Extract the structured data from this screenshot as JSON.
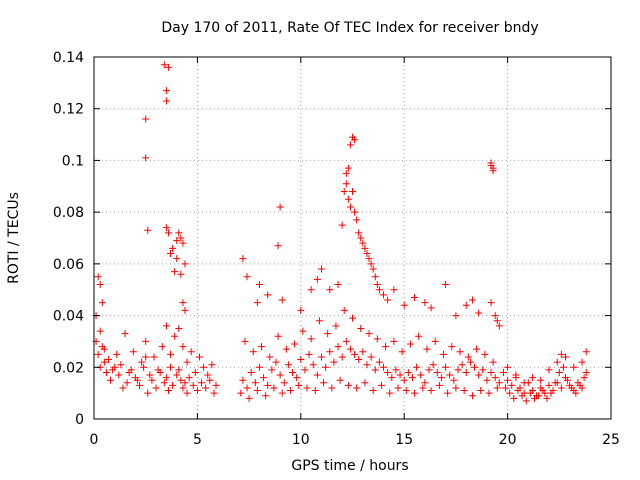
{
  "chart_data": {
    "type": "scatter",
    "title": "Day 170 of 2011, Rate Of TEC Index for receiver bndy",
    "xlabel": "GPS time / hours",
    "ylabel": "ROTI / TECUs",
    "xlim": [
      0,
      25
    ],
    "ylim": [
      0,
      0.14
    ],
    "x_ticks": [
      0,
      5,
      10,
      15,
      20,
      25
    ],
    "y_ticks": [
      0,
      0.02,
      0.04,
      0.06,
      0.08,
      0.1,
      0.12,
      0.14
    ],
    "x_tick_labels": [
      "0",
      "5",
      "10",
      "15",
      "20",
      "25"
    ],
    "y_tick_labels": [
      "0",
      "0.02",
      "0.04",
      "0.06",
      "0.08",
      "0.1",
      "0.12",
      "0.14"
    ],
    "grid": true,
    "legend": "none",
    "marker": "+",
    "color": "#ff0000",
    "series": [
      {
        "x": [
          0.1,
          0.2,
          0.3,
          0.4,
          0.5,
          0.6,
          0.8,
          1.0,
          1.2,
          1.4,
          1.6,
          1.8,
          2.0,
          2.2,
          2.4,
          2.5,
          2.6,
          2.8,
          3.0,
          3.2,
          3.4,
          3.5,
          3.6,
          3.7,
          3.8,
          4.0,
          4.1,
          4.2,
          4.3,
          4.4,
          4.5,
          4.6,
          4.8,
          5.0,
          5.2,
          5.4,
          5.6,
          5.8,
          5.9,
          0.1,
          0.3,
          0.5,
          0.7,
          0.9,
          1.1,
          1.3,
          1.5,
          1.7,
          1.9,
          2.1,
          2.3,
          2.5,
          2.7,
          2.9,
          3.1,
          3.3,
          3.5,
          3.7,
          3.9,
          4.1,
          4.3,
          4.5,
          4.7,
          4.9,
          5.1,
          5.3,
          5.5,
          5.7,
          0.2,
          0.3,
          0.4,
          2.5,
          2.5,
          2.6,
          3.4,
          3.5,
          3.5,
          3.6,
          3.5,
          3.6,
          3.7,
          3.8,
          4.0,
          4.1,
          4.2,
          4.3,
          4.4,
          4.2,
          3.9,
          4.0,
          4.3,
          4.4,
          7.2,
          7.4,
          7.6,
          7.8,
          8.0,
          8.2,
          8.4,
          8.6,
          8.8,
          9.0,
          9.2,
          9.4,
          9.6,
          9.8,
          10.0,
          10.2,
          10.4,
          10.6,
          10.8,
          11.0,
          11.2,
          11.4,
          11.6,
          11.8,
          12.0,
          12.2,
          12.4,
          12.6,
          12.8,
          13.0,
          13.2,
          13.4,
          13.6,
          13.8,
          14.0,
          14.2,
          14.4,
          14.6,
          14.8,
          15.0,
          15.2,
          15.4,
          15.6,
          15.8,
          16.0,
          16.2,
          16.4,
          16.6,
          16.8,
          17.0,
          17.2,
          17.4,
          17.6,
          17.8,
          18.0,
          18.2,
          18.4,
          18.6,
          18.8,
          19.0,
          19.2,
          19.4,
          19.6,
          7.3,
          7.7,
          8.1,
          8.5,
          8.9,
          9.3,
          9.7,
          10.1,
          10.5,
          10.9,
          11.3,
          11.7,
          12.1,
          12.5,
          12.9,
          13.3,
          13.7,
          14.1,
          14.5,
          14.9,
          15.3,
          15.7,
          16.1,
          16.5,
          16.9,
          17.3,
          17.7,
          18.1,
          18.5,
          18.9,
          19.3,
          7.1,
          7.5,
          7.9,
          8.3,
          8.7,
          9.1,
          9.5,
          9.9,
          10.3,
          10.7,
          11.1,
          11.5,
          11.9,
          12.3,
          12.7,
          13.1,
          13.5,
          13.9,
          14.3,
          14.7,
          15.1,
          15.5,
          15.9,
          16.3,
          16.7,
          17.1,
          17.5,
          17.9,
          18.3,
          18.7,
          19.1,
          19.5,
          7.2,
          7.4,
          7.9,
          8.0,
          8.4,
          8.9,
          9.0,
          9.1,
          10.0,
          10.5,
          10.8,
          11.0,
          11.4,
          11.8,
          12.0,
          12.1,
          12.2,
          12.3,
          12.4,
          12.5,
          12.6,
          12.2,
          12.3,
          12.4,
          12.5,
          12.6,
          12.7,
          12.8,
          12.9,
          13.0,
          13.1,
          13.2,
          13.3,
          13.4,
          13.5,
          13.6,
          13.7,
          13.8,
          14.0,
          14.2,
          14.5,
          15.0,
          15.5,
          16.0,
          16.3,
          17.0,
          17.5,
          18.0,
          18.3,
          18.6,
          19.2,
          19.3,
          19.2,
          19.3,
          19.2,
          19.4,
          19.5,
          19.6,
          19.8,
          20.0,
          20.2,
          20.4,
          20.6,
          20.8,
          21.0,
          21.2,
          21.4,
          21.6,
          21.8,
          22.0,
          22.2,
          22.4,
          22.6,
          22.8,
          23.0,
          23.2,
          23.4,
          23.6,
          23.8,
          19.9,
          20.1,
          20.3,
          20.5,
          20.7,
          20.9,
          21.1,
          21.3,
          21.5,
          21.7,
          21.9,
          22.1,
          22.3,
          22.5,
          22.7,
          22.9,
          23.1,
          23.3,
          23.5,
          23.7,
          20.0,
          20.4,
          20.8,
          21.2,
          21.6,
          22.0,
          22.4,
          22.6,
          22.8,
          23.2,
          23.6,
          23.8
        ],
        "y": [
          0.03,
          0.025,
          0.02,
          0.028,
          0.022,
          0.018,
          0.015,
          0.02,
          0.017,
          0.012,
          0.014,
          0.019,
          0.016,
          0.013,
          0.02,
          0.024,
          0.01,
          0.015,
          0.012,
          0.018,
          0.014,
          0.016,
          0.011,
          0.02,
          0.013,
          0.017,
          0.019,
          0.015,
          0.012,
          0.014,
          0.01,
          0.016,
          0.013,
          0.011,
          0.014,
          0.012,
          0.015,
          0.01,
          0.013,
          0.04,
          0.034,
          0.027,
          0.023,
          0.019,
          0.025,
          0.021,
          0.033,
          0.018,
          0.026,
          0.015,
          0.022,
          0.03,
          0.017,
          0.024,
          0.019,
          0.028,
          0.036,
          0.025,
          0.032,
          0.035,
          0.028,
          0.022,
          0.026,
          0.018,
          0.024,
          0.02,
          0.017,
          0.021,
          0.055,
          0.052,
          0.045,
          0.116,
          0.101,
          0.073,
          0.137,
          0.127,
          0.123,
          0.136,
          0.074,
          0.072,
          0.064,
          0.066,
          0.069,
          0.072,
          0.07,
          0.068,
          0.06,
          0.056,
          0.057,
          0.062,
          0.045,
          0.042,
          0.015,
          0.012,
          0.018,
          0.014,
          0.02,
          0.016,
          0.013,
          0.019,
          0.022,
          0.017,
          0.014,
          0.021,
          0.018,
          0.016,
          0.023,
          0.019,
          0.025,
          0.021,
          0.017,
          0.024,
          0.02,
          0.026,
          0.022,
          0.028,
          0.024,
          0.03,
          0.027,
          0.025,
          0.023,
          0.026,
          0.021,
          0.024,
          0.019,
          0.022,
          0.02,
          0.018,
          0.016,
          0.019,
          0.017,
          0.015,
          0.018,
          0.016,
          0.02,
          0.017,
          0.014,
          0.019,
          0.021,
          0.018,
          0.016,
          0.02,
          0.017,
          0.015,
          0.019,
          0.021,
          0.018,
          0.022,
          0.02,
          0.017,
          0.019,
          0.015,
          0.018,
          0.016,
          0.014,
          0.03,
          0.026,
          0.028,
          0.024,
          0.032,
          0.027,
          0.029,
          0.034,
          0.031,
          0.038,
          0.033,
          0.036,
          0.042,
          0.039,
          0.035,
          0.033,
          0.031,
          0.028,
          0.03,
          0.026,
          0.029,
          0.032,
          0.027,
          0.03,
          0.025,
          0.028,
          0.026,
          0.024,
          0.027,
          0.025,
          0.022,
          0.01,
          0.008,
          0.011,
          0.009,
          0.012,
          0.01,
          0.011,
          0.013,
          0.012,
          0.011,
          0.014,
          0.012,
          0.015,
          0.013,
          0.012,
          0.014,
          0.011,
          0.013,
          0.01,
          0.012,
          0.011,
          0.01,
          0.012,
          0.011,
          0.013,
          0.01,
          0.012,
          0.011,
          0.009,
          0.011,
          0.01,
          0.012,
          0.062,
          0.055,
          0.045,
          0.052,
          0.048,
          0.067,
          0.082,
          0.046,
          0.042,
          0.05,
          0.054,
          0.058,
          0.05,
          0.052,
          0.075,
          0.088,
          0.091,
          0.097,
          0.106,
          0.109,
          0.108,
          0.095,
          0.085,
          0.082,
          0.088,
          0.08,
          0.077,
          0.072,
          0.07,
          0.068,
          0.066,
          0.064,
          0.062,
          0.06,
          0.058,
          0.055,
          0.052,
          0.05,
          0.048,
          0.046,
          0.05,
          0.044,
          0.047,
          0.045,
          0.043,
          0.052,
          0.04,
          0.044,
          0.046,
          0.041,
          0.099,
          0.097,
          0.098,
          0.096,
          0.045,
          0.04,
          0.038,
          0.036,
          0.018,
          0.015,
          0.013,
          0.016,
          0.012,
          0.01,
          0.014,
          0.011,
          0.009,
          0.012,
          0.01,
          0.013,
          0.011,
          0.014,
          0.012,
          0.016,
          0.013,
          0.011,
          0.014,
          0.012,
          0.018,
          0.012,
          0.01,
          0.008,
          0.011,
          0.009,
          0.007,
          0.01,
          0.008,
          0.009,
          0.011,
          0.008,
          0.01,
          0.014,
          0.018,
          0.02,
          0.015,
          0.012,
          0.01,
          0.013,
          0.016,
          0.02,
          0.017,
          0.014,
          0.016,
          0.015,
          0.019,
          0.022,
          0.025,
          0.024,
          0.02,
          0.022,
          0.026
        ]
      }
    ]
  }
}
